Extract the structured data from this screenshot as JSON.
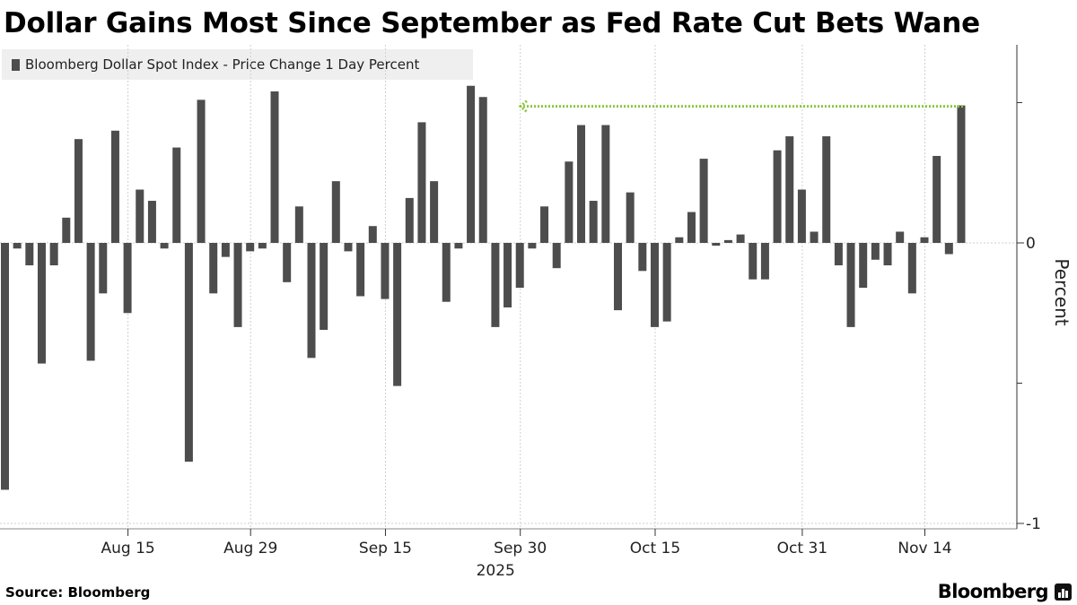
{
  "title": "Dollar Gains Most Since September as Fed Rate Cut Bets Wane",
  "source": "Source: Bloomberg",
  "brand": "Bloomberg",
  "chart_data": {
    "type": "bar",
    "series": [
      {
        "name": "Bloomberg Dollar Spot Index - Price Change 1 Day Percent",
        "color": "#4d4d4d",
        "values": [
          -0.88,
          -0.02,
          -0.08,
          -0.43,
          -0.08,
          0.09,
          0.37,
          -0.42,
          -0.18,
          0.4,
          -0.25,
          0.19,
          0.15,
          -0.02,
          0.34,
          -0.78,
          0.51,
          -0.18,
          -0.05,
          -0.3,
          -0.03,
          -0.02,
          0.54,
          -0.14,
          0.13,
          -0.41,
          -0.31,
          0.22,
          -0.03,
          -0.19,
          0.06,
          -0.2,
          -0.51,
          0.16,
          0.43,
          0.22,
          -0.21,
          -0.02,
          0.56,
          0.52,
          -0.3,
          -0.23,
          -0.16,
          -0.02,
          0.13,
          -0.09,
          0.29,
          0.42,
          0.15,
          0.42,
          -0.24,
          0.18,
          -0.1,
          -0.3,
          -0.28,
          0.02,
          0.11,
          0.3,
          -0.01,
          0.01,
          0.03,
          -0.13,
          -0.13,
          0.33,
          0.38,
          0.19,
          0.04,
          0.38,
          -0.08,
          -0.3,
          -0.16,
          -0.06,
          -0.08,
          0.04,
          -0.18,
          0.02,
          0.31,
          -0.04,
          0.49
        ]
      }
    ],
    "x_ticks": [
      {
        "label": "Aug 15",
        "index": 10
      },
      {
        "label": "Aug 29",
        "index": 20
      },
      {
        "label": "Sep 15",
        "index": 31
      },
      {
        "label": "Sep 30",
        "index": 42
      },
      {
        "label": "Oct 15",
        "index": 53
      },
      {
        "label": "Oct 31",
        "index": 65
      },
      {
        "label": "Nov 14",
        "index": 75
      }
    ],
    "year_label": "2025",
    "ylabel": "Percent",
    "y_ticks": [
      0,
      -1
    ],
    "ylim": [
      -1.0,
      0.6
    ],
    "grid": true,
    "legend_position": "top-left",
    "annotation": {
      "type": "dotted-arrow",
      "color": "#8cc63f",
      "from_index": 78,
      "to_index": 40,
      "value": 0.49
    }
  }
}
